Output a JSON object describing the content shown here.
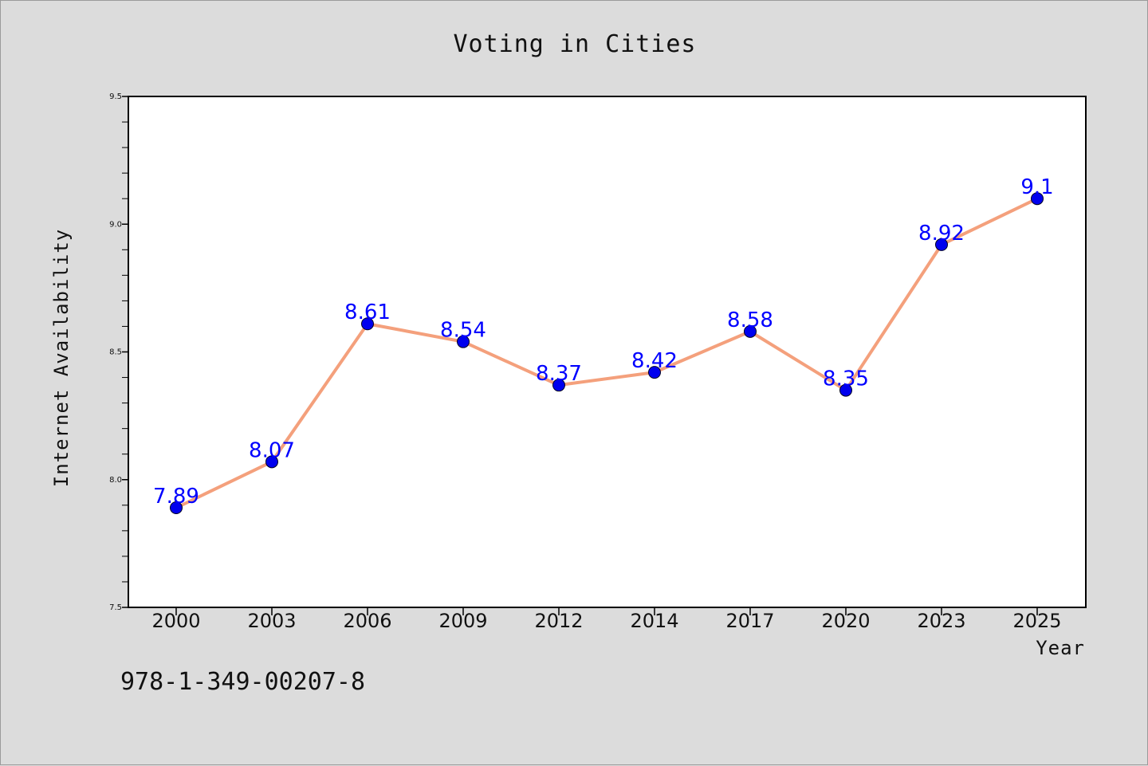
{
  "chart_data": {
    "type": "line",
    "title": "Voting in Cities",
    "xlabel": "Year",
    "ylabel": "Internet Availability",
    "categories": [
      "2000",
      "2003",
      "2006",
      "2009",
      "2012",
      "2014",
      "2017",
      "2020",
      "2023",
      "2025"
    ],
    "series": [
      {
        "values": [
          7.89,
          8.07,
          8.61,
          8.54,
          8.37,
          8.42,
          8.58,
          8.35,
          8.92,
          9.1
        ],
        "line_color": "#f4a07c",
        "marker_color": "#0000ee"
      }
    ],
    "data_labels": [
      "7.89",
      "8.07",
      "8.61",
      "8.54",
      "8.37",
      "8.42",
      "8.58",
      "8.35",
      "8.92",
      "9.1"
    ],
    "ylim": [
      7.5,
      9.5
    ],
    "yticks": [
      "7.5",
      "8.0",
      "8.5",
      "9.0",
      "9.5"
    ],
    "grid": false,
    "label_color": "#0000ff"
  },
  "footer": {
    "identifier": "978-1-349-00207-8"
  }
}
